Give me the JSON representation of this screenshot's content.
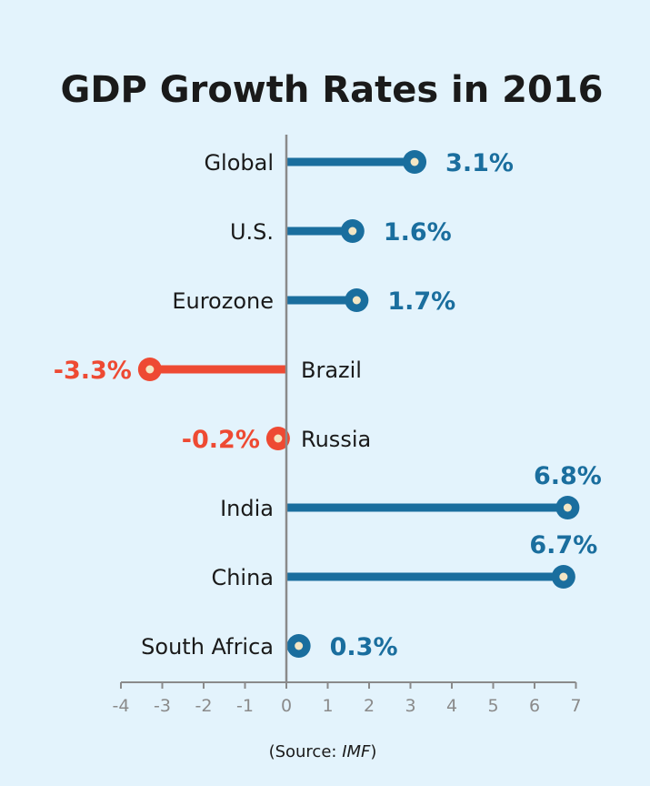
{
  "chart_data": {
    "type": "lollipop-bar",
    "title": "GDP Growth Rates in 2016",
    "categories": [
      "Global",
      "U.S.",
      "Eurozone",
      "Brazil",
      "Russia",
      "India",
      "China",
      "South Africa"
    ],
    "values": [
      3.1,
      1.6,
      1.7,
      -3.3,
      -0.2,
      6.8,
      6.7,
      0.3
    ],
    "value_labels": [
      "3.1%",
      "1.6%",
      "1.7%",
      "-3.3%",
      "-0.2%",
      "6.8%",
      "6.7%",
      "0.3%"
    ],
    "xlim": [
      -4,
      7
    ],
    "xticks": [
      -4,
      -3,
      -2,
      -1,
      0,
      1,
      2,
      3,
      4,
      5,
      6,
      7
    ],
    "xtick_labels": [
      "-4",
      "-3",
      "-2",
      "-1",
      "0",
      "1",
      "2",
      "3",
      "4",
      "5",
      "6",
      "7"
    ],
    "grid": false,
    "colors": {
      "positive": "#1a6e9e",
      "negative": "#ee4a33",
      "dot_center": "#f3e6c4",
      "axis": "#8a8a8a",
      "background": "#e3f3fc"
    },
    "source": {
      "prefix": "(Source: ",
      "name": "IMF",
      "suffix": ")"
    }
  }
}
